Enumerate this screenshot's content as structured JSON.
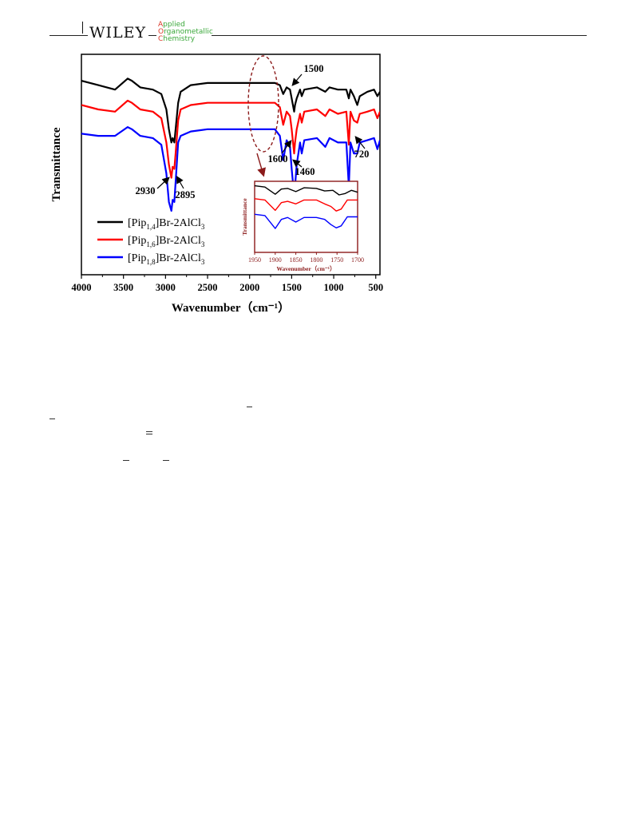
{
  "header": {
    "publisher": "WILEY",
    "journal_lines": [
      {
        "first": "A",
        "rest": "pplied"
      },
      {
        "first": "O",
        "rest": "rganometallic"
      },
      {
        "first": "C",
        "rest": "hemistry"
      }
    ]
  },
  "colors": {
    "series_1_4": "#000000",
    "series_1_6": "#ff0000",
    "series_1_8": "#0000ff",
    "inset_frame": "#8b1a1a",
    "dashed_ellipse": "#8b1a1a"
  },
  "chart_data": [
    {
      "type": "line",
      "title": "",
      "xlabel": "Wavenumber（cm⁻¹）",
      "ylabel": "Transmittance",
      "xlim": [
        4000,
        450
      ],
      "x_reversed": true,
      "x_ticks": [
        4000,
        3500,
        3000,
        2500,
        2000,
        1500,
        1000,
        500
      ],
      "y_ticks_shown": false,
      "legend_position": "bottom-left",
      "series": [
        {
          "name": "[Pip1,4]Br-2AlCl3",
          "name_parts": [
            "[Pip",
            "1,4",
            "]Br-2AlCl",
            "3"
          ],
          "color": "#000000",
          "points": [
            [
              4000,
              88
            ],
            [
              3800,
              86
            ],
            [
              3600,
              84
            ],
            [
              3450,
              89
            ],
            [
              3400,
              88
            ],
            [
              3300,
              85
            ],
            [
              3150,
              84
            ],
            [
              3050,
              82
            ],
            [
              2990,
              75
            ],
            [
              2960,
              66
            ],
            [
              2930,
              60
            ],
            [
              2915,
              62
            ],
            [
              2895,
              60
            ],
            [
              2880,
              66
            ],
            [
              2850,
              78
            ],
            [
              2820,
              83
            ],
            [
              2700,
              86
            ],
            [
              2500,
              87
            ],
            [
              2000,
              87
            ],
            [
              1700,
              87
            ],
            [
              1640,
              86
            ],
            [
              1600,
              82
            ],
            [
              1560,
              85
            ],
            [
              1520,
              84
            ],
            [
              1500,
              80
            ],
            [
              1470,
              74
            ],
            [
              1460,
              77
            ],
            [
              1440,
              80
            ],
            [
              1400,
              84
            ],
            [
              1380,
              81
            ],
            [
              1350,
              84
            ],
            [
              1200,
              85
            ],
            [
              1100,
              83
            ],
            [
              1050,
              85
            ],
            [
              950,
              84
            ],
            [
              850,
              84
            ],
            [
              820,
              80
            ],
            [
              800,
              84
            ],
            [
              760,
              81
            ],
            [
              720,
              77
            ],
            [
              690,
              81
            ],
            [
              600,
              83
            ],
            [
              520,
              84
            ],
            [
              480,
              81
            ],
            [
              450,
              83
            ]
          ]
        },
        {
          "name": "[Pip1,6]Br-2AlCl3",
          "name_parts": [
            "[Pip",
            "1,6",
            "]Br-2AlCl",
            "3"
          ],
          "color": "#ff0000",
          "points": [
            [
              4000,
              77
            ],
            [
              3800,
              75
            ],
            [
              3600,
              74
            ],
            [
              3450,
              79
            ],
            [
              3400,
              78
            ],
            [
              3300,
              75
            ],
            [
              3150,
              74
            ],
            [
              3050,
              71
            ],
            [
              2990,
              60
            ],
            [
              2960,
              50
            ],
            [
              2930,
              44
            ],
            [
              2915,
              49
            ],
            [
              2895,
              48
            ],
            [
              2880,
              55
            ],
            [
              2850,
              70
            ],
            [
              2820,
              75
            ],
            [
              2700,
              77
            ],
            [
              2500,
              78
            ],
            [
              2000,
              78
            ],
            [
              1700,
              78
            ],
            [
              1640,
              76
            ],
            [
              1600,
              68
            ],
            [
              1560,
              74
            ],
            [
              1520,
              72
            ],
            [
              1500,
              66
            ],
            [
              1470,
              55
            ],
            [
              1460,
              60
            ],
            [
              1440,
              66
            ],
            [
              1400,
              73
            ],
            [
              1380,
              69
            ],
            [
              1350,
              74
            ],
            [
              1200,
              75
            ],
            [
              1100,
              72
            ],
            [
              1050,
              75
            ],
            [
              950,
              73
            ],
            [
              850,
              74
            ],
            [
              820,
              59
            ],
            [
              800,
              74
            ],
            [
              760,
              70
            ],
            [
              720,
              69
            ],
            [
              690,
              73
            ],
            [
              600,
              74
            ],
            [
              520,
              75
            ],
            [
              480,
              71
            ],
            [
              450,
              74
            ]
          ]
        },
        {
          "name": "[Pip1,8]Br-2AlCl3",
          "name_parts": [
            "[Pip",
            "1,8",
            "]Br-2AlCl",
            "3"
          ],
          "color": "#0000ff",
          "points": [
            [
              4000,
              64
            ],
            [
              3800,
              63
            ],
            [
              3600,
              63
            ],
            [
              3450,
              67
            ],
            [
              3400,
              66
            ],
            [
              3300,
              63
            ],
            [
              3150,
              62
            ],
            [
              3050,
              59
            ],
            [
              2990,
              46
            ],
            [
              2960,
              33
            ],
            [
              2930,
              29
            ],
            [
              2915,
              34
            ],
            [
              2895,
              33
            ],
            [
              2880,
              42
            ],
            [
              2850,
              60
            ],
            [
              2820,
              63
            ],
            [
              2700,
              65
            ],
            [
              2500,
              66
            ],
            [
              2000,
              66
            ],
            [
              1700,
              66
            ],
            [
              1640,
              63
            ],
            [
              1600,
              52
            ],
            [
              1560,
              61
            ],
            [
              1520,
              58
            ],
            [
              1500,
              48
            ],
            [
              1470,
              36
            ],
            [
              1460,
              40
            ],
            [
              1440,
              50
            ],
            [
              1400,
              60
            ],
            [
              1380,
              55
            ],
            [
              1350,
              61
            ],
            [
              1200,
              62
            ],
            [
              1100,
              58
            ],
            [
              1050,
              62
            ],
            [
              950,
              60
            ],
            [
              850,
              60
            ],
            [
              820,
              40
            ],
            [
              800,
              60
            ],
            [
              760,
              55
            ],
            [
              720,
              55
            ],
            [
              690,
              60
            ],
            [
              600,
              61
            ],
            [
              520,
              62
            ],
            [
              480,
              57
            ],
            [
              450,
              61
            ]
          ]
        }
      ],
      "annotations": [
        {
          "text": "2930",
          "x": 2930
        },
        {
          "text": "2895",
          "x": 2895
        },
        {
          "text": "1600",
          "x": 1600
        },
        {
          "text": "1460",
          "x": 1460
        },
        {
          "text": "1500",
          "x": 1500
        },
        {
          "text": "720",
          "x": 720
        }
      ],
      "highlight_region": {
        "x": [
          2000,
          1700
        ],
        "shape": "dashed-ellipse"
      }
    },
    {
      "type": "line",
      "title": "",
      "xlabel": "Wavenumber（cm⁻¹）",
      "ylabel": "Transmittance",
      "xlim": [
        1950,
        1700
      ],
      "x_reversed": true,
      "x_ticks": [
        1950,
        1900,
        1850,
        1800,
        1750,
        1700
      ],
      "series": [
        {
          "name": "[Pip1,4]Br-2AlCl3",
          "color": "#000000",
          "points": [
            [
              1950,
              98
            ],
            [
              1925,
              96
            ],
            [
              1900,
              85
            ],
            [
              1885,
              93
            ],
            [
              1870,
              94
            ],
            [
              1850,
              89
            ],
            [
              1830,
              95
            ],
            [
              1800,
              94
            ],
            [
              1780,
              90
            ],
            [
              1760,
              91
            ],
            [
              1745,
              84
            ],
            [
              1730,
              86
            ],
            [
              1715,
              91
            ],
            [
              1700,
              88
            ]
          ]
        },
        {
          "name": "[Pip1,6]Br-2AlCl3",
          "color": "#ff0000",
          "points": [
            [
              1950,
              78
            ],
            [
              1925,
              76
            ],
            [
              1900,
              60
            ],
            [
              1885,
              72
            ],
            [
              1870,
              74
            ],
            [
              1850,
              70
            ],
            [
              1830,
              76
            ],
            [
              1800,
              76
            ],
            [
              1780,
              70
            ],
            [
              1765,
              66
            ],
            [
              1752,
              59
            ],
            [
              1740,
              62
            ],
            [
              1725,
              76
            ],
            [
              1700,
              76
            ]
          ]
        },
        {
          "name": "[Pip1,8]Br-2AlCl3",
          "color": "#0000ff",
          "points": [
            [
              1950,
              54
            ],
            [
              1925,
              52
            ],
            [
              1900,
              32
            ],
            [
              1885,
              46
            ],
            [
              1870,
              49
            ],
            [
              1850,
              42
            ],
            [
              1830,
              49
            ],
            [
              1800,
              49
            ],
            [
              1780,
              46
            ],
            [
              1765,
              38
            ],
            [
              1752,
              33
            ],
            [
              1740,
              36
            ],
            [
              1725,
              50
            ],
            [
              1700,
              50
            ]
          ]
        }
      ]
    }
  ],
  "stray_marks": [
    {
      "glyph": "minus"
    },
    {
      "glyph": "minus"
    },
    {
      "glyph": "equals"
    },
    {
      "glyph": "minus"
    },
    {
      "glyph": "minus"
    }
  ]
}
